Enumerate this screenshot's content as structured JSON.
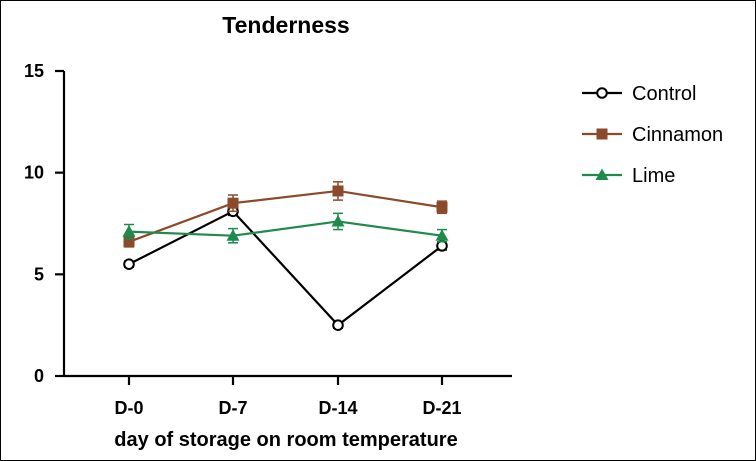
{
  "chart_data": {
    "type": "line",
    "title": "Tenderness",
    "xlabel": "day of storage on room temperature",
    "ylabel": "",
    "categories": [
      "D-0",
      "D-7",
      "D-14",
      "D-21"
    ],
    "ylim": [
      0,
      15
    ],
    "yticks": [
      0,
      5,
      10,
      15
    ],
    "legend_position": "right",
    "series": [
      {
        "name": "Control",
        "color": "#000000",
        "marker": "circle-open",
        "values": [
          5.5,
          8.1,
          2.5,
          6.4
        ],
        "errors": [
          0.15,
          0.2,
          0.15,
          0.2
        ]
      },
      {
        "name": "Cinnamon",
        "color": "#8B4A2B",
        "marker": "square",
        "values": [
          6.6,
          8.5,
          9.1,
          8.3
        ],
        "errors": [
          0.25,
          0.4,
          0.45,
          0.3
        ]
      },
      {
        "name": "Lime",
        "color": "#1E8B4C",
        "marker": "triangle",
        "values": [
          7.1,
          6.9,
          7.6,
          6.9
        ],
        "errors": [
          0.35,
          0.35,
          0.4,
          0.3
        ]
      }
    ]
  }
}
